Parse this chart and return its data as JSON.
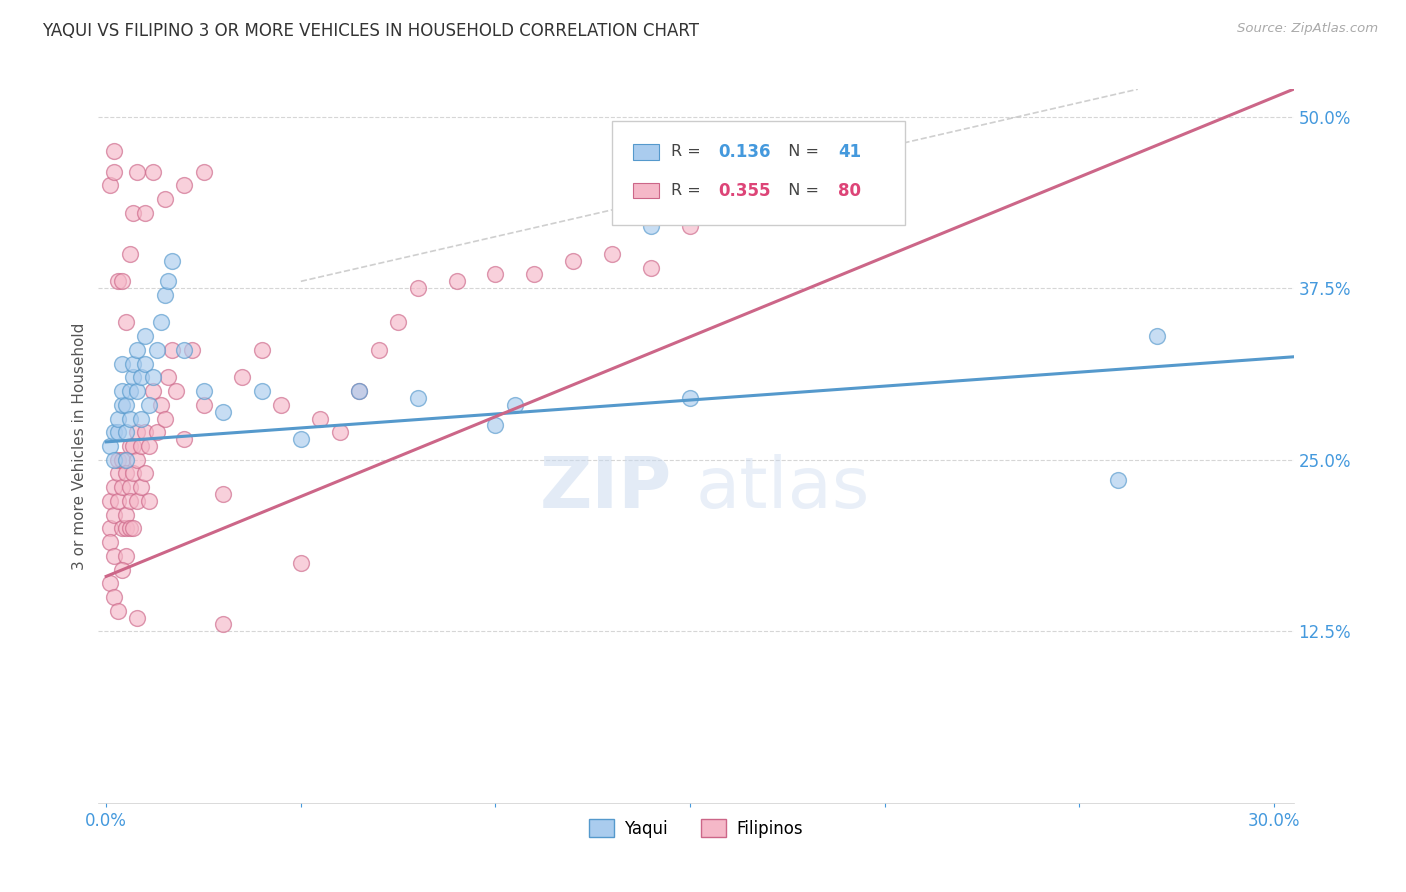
{
  "title": "YAQUI VS FILIPINO 3 OR MORE VEHICLES IN HOUSEHOLD CORRELATION CHART",
  "source": "Source: ZipAtlas.com",
  "ylabel": "3 or more Vehicles in Household",
  "x_ticks": [
    0.0,
    0.05,
    0.1,
    0.15,
    0.2,
    0.25,
    0.3
  ],
  "x_tick_labels": [
    "0.0%",
    "",
    "",
    "",
    "",
    "",
    "30.0%"
  ],
  "y_ticks_right": [
    0.125,
    0.25,
    0.375,
    0.5
  ],
  "y_tick_labels_right": [
    "12.5%",
    "25.0%",
    "37.5%",
    "50.0%"
  ],
  "xlim": [
    -0.002,
    0.305
  ],
  "ylim": [
    0.0,
    0.52
  ],
  "color_blue": "#aaccee",
  "color_pink": "#f5b8c8",
  "color_blue_line": "#5599cc",
  "color_pink_line": "#cc6688",
  "color_value_blue": "#4499dd",
  "color_value_pink": "#dd4477",
  "bg_color": "#ffffff",
  "grid_color": "#cccccc",
  "title_color": "#333333",
  "axis_label_color": "#4499dd",
  "yaqui_x": [
    0.001,
    0.002,
    0.002,
    0.003,
    0.003,
    0.004,
    0.004,
    0.004,
    0.005,
    0.005,
    0.005,
    0.006,
    0.006,
    0.007,
    0.007,
    0.008,
    0.008,
    0.009,
    0.009,
    0.01,
    0.01,
    0.011,
    0.012,
    0.013,
    0.014,
    0.015,
    0.016,
    0.017,
    0.02,
    0.025,
    0.03,
    0.04,
    0.05,
    0.065,
    0.08,
    0.1,
    0.105,
    0.14,
    0.15,
    0.26,
    0.27
  ],
  "yaqui_y": [
    0.26,
    0.25,
    0.27,
    0.27,
    0.28,
    0.29,
    0.3,
    0.32,
    0.27,
    0.29,
    0.25,
    0.28,
    0.3,
    0.31,
    0.32,
    0.3,
    0.33,
    0.28,
    0.31,
    0.32,
    0.34,
    0.29,
    0.31,
    0.33,
    0.35,
    0.37,
    0.38,
    0.395,
    0.33,
    0.3,
    0.285,
    0.3,
    0.265,
    0.3,
    0.295,
    0.275,
    0.29,
    0.42,
    0.295,
    0.235,
    0.34
  ],
  "filipino_x": [
    0.001,
    0.001,
    0.001,
    0.002,
    0.002,
    0.002,
    0.003,
    0.003,
    0.003,
    0.004,
    0.004,
    0.004,
    0.005,
    0.005,
    0.005,
    0.005,
    0.006,
    0.006,
    0.006,
    0.006,
    0.007,
    0.007,
    0.007,
    0.008,
    0.008,
    0.008,
    0.009,
    0.009,
    0.01,
    0.01,
    0.011,
    0.011,
    0.012,
    0.013,
    0.014,
    0.015,
    0.016,
    0.017,
    0.018,
    0.02,
    0.022,
    0.025,
    0.03,
    0.035,
    0.04,
    0.045,
    0.05,
    0.055,
    0.06,
    0.065,
    0.07,
    0.075,
    0.08,
    0.09,
    0.1,
    0.11,
    0.12,
    0.13,
    0.14,
    0.15,
    0.001,
    0.002,
    0.003,
    0.004,
    0.005,
    0.006,
    0.007,
    0.008,
    0.01,
    0.012,
    0.015,
    0.02,
    0.025,
    0.001,
    0.002,
    0.003,
    0.008,
    0.03,
    0.002,
    0.004
  ],
  "filipino_y": [
    0.2,
    0.22,
    0.19,
    0.21,
    0.23,
    0.18,
    0.24,
    0.25,
    0.22,
    0.2,
    0.23,
    0.25,
    0.2,
    0.21,
    0.24,
    0.18,
    0.2,
    0.23,
    0.26,
    0.22,
    0.24,
    0.26,
    0.2,
    0.22,
    0.25,
    0.27,
    0.23,
    0.26,
    0.24,
    0.27,
    0.22,
    0.26,
    0.3,
    0.27,
    0.29,
    0.28,
    0.31,
    0.33,
    0.3,
    0.265,
    0.33,
    0.29,
    0.225,
    0.31,
    0.33,
    0.29,
    0.175,
    0.28,
    0.27,
    0.3,
    0.33,
    0.35,
    0.375,
    0.38,
    0.385,
    0.385,
    0.395,
    0.4,
    0.39,
    0.42,
    0.45,
    0.46,
    0.38,
    0.38,
    0.35,
    0.4,
    0.43,
    0.46,
    0.43,
    0.46,
    0.44,
    0.45,
    0.46,
    0.16,
    0.15,
    0.14,
    0.135,
    0.13,
    0.475,
    0.17
  ]
}
